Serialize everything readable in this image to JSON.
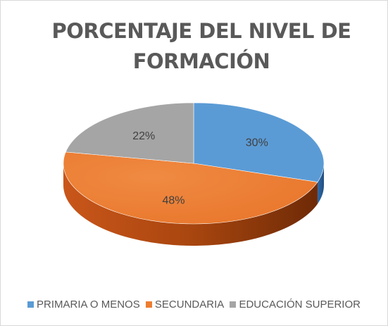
{
  "chart_data": {
    "type": "pie",
    "title_lines": [
      "PORCENTAJE DEL NIVEL DE",
      "FORMACIÓN"
    ],
    "categories": [
      "PRIMARIA O MENOS",
      "SECUNDARIA",
      "EDUCACIÓN SUPERIOR"
    ],
    "values": [
      30,
      48,
      22
    ],
    "labels": [
      "30%",
      "48%",
      "22%"
    ],
    "colors": [
      "#5B9BD5",
      "#ED7D31",
      "#A5A5A5"
    ],
    "style": "3d",
    "legend": "bottom"
  }
}
